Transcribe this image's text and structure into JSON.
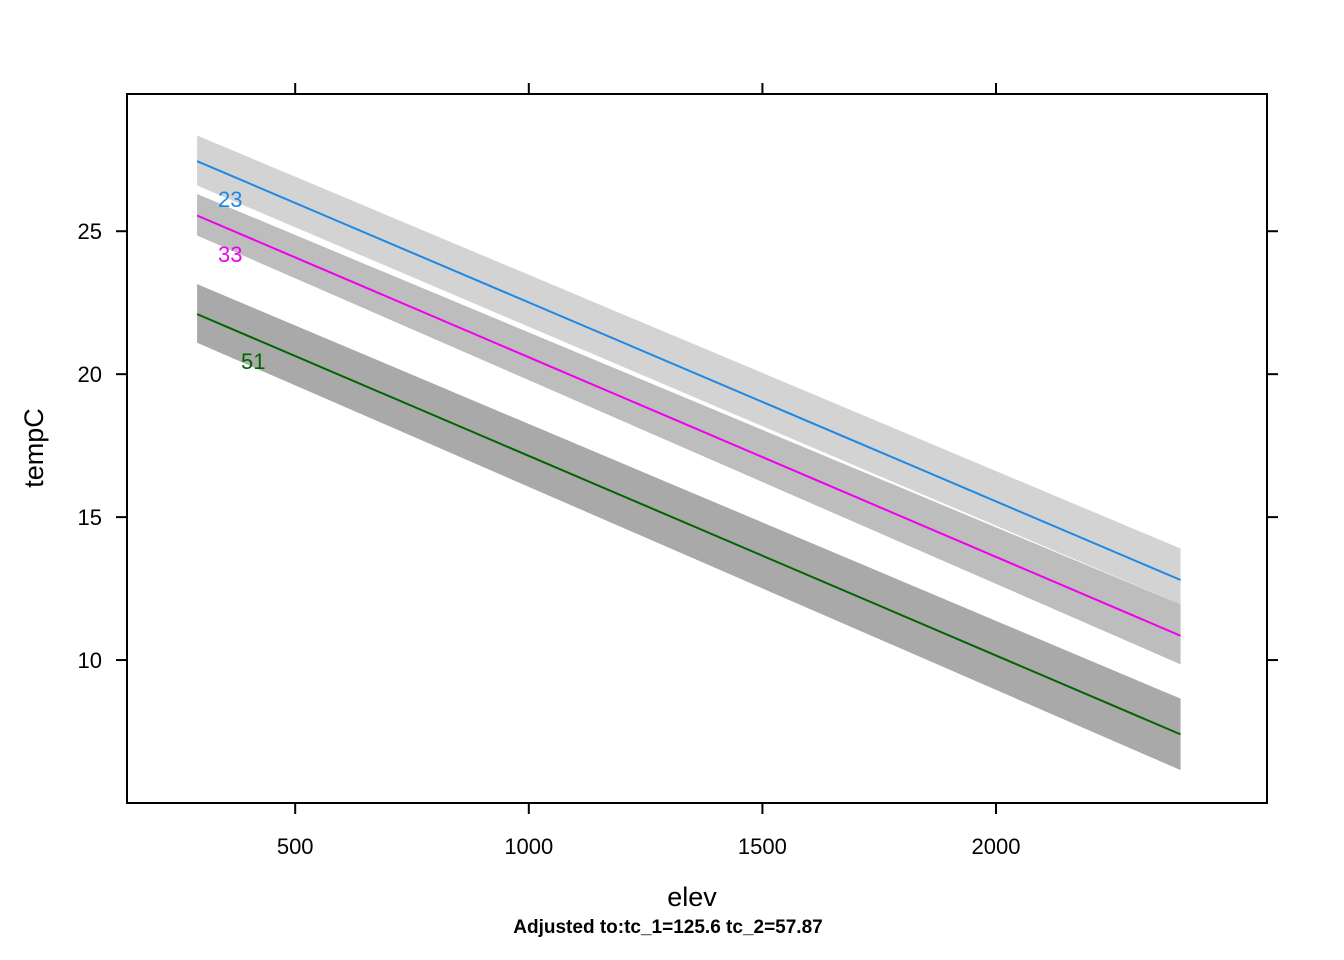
{
  "chart_data": {
    "type": "line",
    "xlabel": "elev",
    "ylabel": "tempC",
    "footnote": "Adjusted to:tc_1=125.6 tc_2=57.87",
    "xlim": [
      140,
      2580
    ],
    "ylim": [
      5,
      29.8
    ],
    "x_ticks": [
      500,
      1000,
      1500,
      2000
    ],
    "x_tick_labels": [
      "500",
      "1000",
      "1500",
      "2000"
    ],
    "y_ticks": [
      10,
      15,
      20,
      25
    ],
    "y_tick_labels": [
      "10",
      "15",
      "20",
      "25"
    ],
    "grid": false,
    "legend": "inline labels",
    "series": [
      {
        "name": "23",
        "color": "#1e88e5",
        "band_color": "#d3d3d3",
        "x": [
          290,
          2395
        ],
        "y": [
          27.45,
          12.8
        ],
        "ci_lower": [
          26.6,
          11.95
        ],
        "ci_upper": [
          28.35,
          13.9
        ]
      },
      {
        "name": "33",
        "color": "#ee00ee",
        "band_color": "#bdbdbd",
        "x": [
          290,
          2395
        ],
        "y": [
          25.55,
          10.85
        ],
        "ci_lower": [
          24.85,
          9.85
        ],
        "ci_upper": [
          26.3,
          11.95
        ]
      },
      {
        "name": "51",
        "color": "#006400",
        "band_color": "#a9a9a9",
        "x": [
          290,
          2395
        ],
        "y": [
          22.1,
          7.4
        ],
        "ci_lower": [
          21.1,
          6.15
        ],
        "ci_upper": [
          23.15,
          8.65
        ]
      }
    ]
  }
}
